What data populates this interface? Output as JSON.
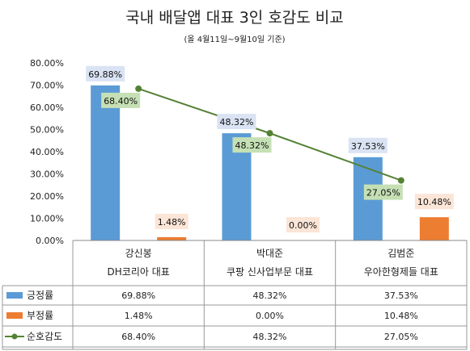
{
  "chart_data": {
    "type": "bar",
    "title": "국내 배달앱 대표 3인 호감도 비교",
    "subtitle": "(올 4월11일~9월10일 기준)",
    "categories": [
      {
        "name": "강신봉",
        "role": "DH코리아 대표"
      },
      {
        "name": "박대준",
        "role": "쿠팡 신사업부문 대표"
      },
      {
        "name": "김범준",
        "role": "우아한형제들 대표"
      }
    ],
    "series": [
      {
        "name": "긍정률",
        "type": "bar",
        "color": "#5b9bd5",
        "values": [
          69.88,
          48.32,
          37.53
        ],
        "labels": [
          "69.88%",
          "48.32%",
          "37.53%"
        ]
      },
      {
        "name": "부정률",
        "type": "bar",
        "color": "#ed7d31",
        "values": [
          1.48,
          0.0,
          10.48
        ],
        "labels": [
          "1.48%",
          "0.00%",
          "10.48%"
        ]
      },
      {
        "name": "순호감도",
        "type": "line",
        "color": "#548235",
        "values": [
          68.4,
          48.32,
          27.05
        ],
        "labels": [
          "68.40%",
          "48.32%",
          "27.05%"
        ]
      }
    ],
    "yticks": [
      "0.00%",
      "10.00%",
      "20.00%",
      "30.00%",
      "40.00%",
      "50.00%",
      "60.00%",
      "70.00%",
      "80.00%"
    ],
    "ylim": [
      0,
      80
    ],
    "grid": false,
    "legend": "data-table"
  }
}
